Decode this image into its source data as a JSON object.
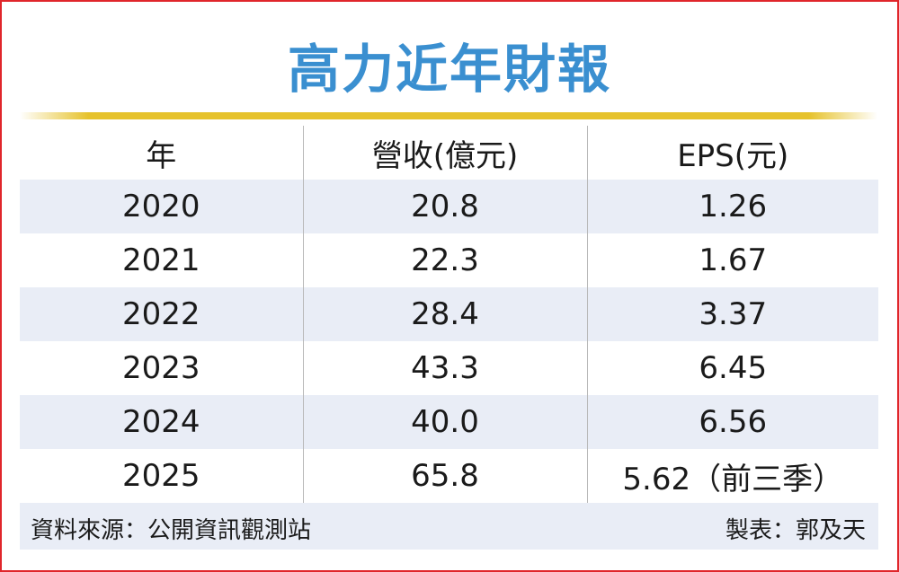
{
  "title": "高力近年財報",
  "table": {
    "headers": [
      "年",
      "營收(億元)",
      "EPS(元)"
    ],
    "rows": [
      [
        "2020",
        "20.8",
        "1.26"
      ],
      [
        "2021",
        "22.3",
        "1.67"
      ],
      [
        "2022",
        "28.4",
        "3.37"
      ],
      [
        "2023",
        "43.3",
        "6.45"
      ],
      [
        "2024",
        "40.0",
        "6.56"
      ],
      [
        "2025",
        "65.8",
        "5.62（前三季）"
      ]
    ]
  },
  "footer": {
    "source": "資料來源：公開資訊觀測站",
    "credit": "製表：郭及天"
  },
  "colors": {
    "title": "#3a8fd0",
    "accent_line": "#e6c22c",
    "row_shade": "#e9edf6",
    "border": "#e0262b"
  }
}
